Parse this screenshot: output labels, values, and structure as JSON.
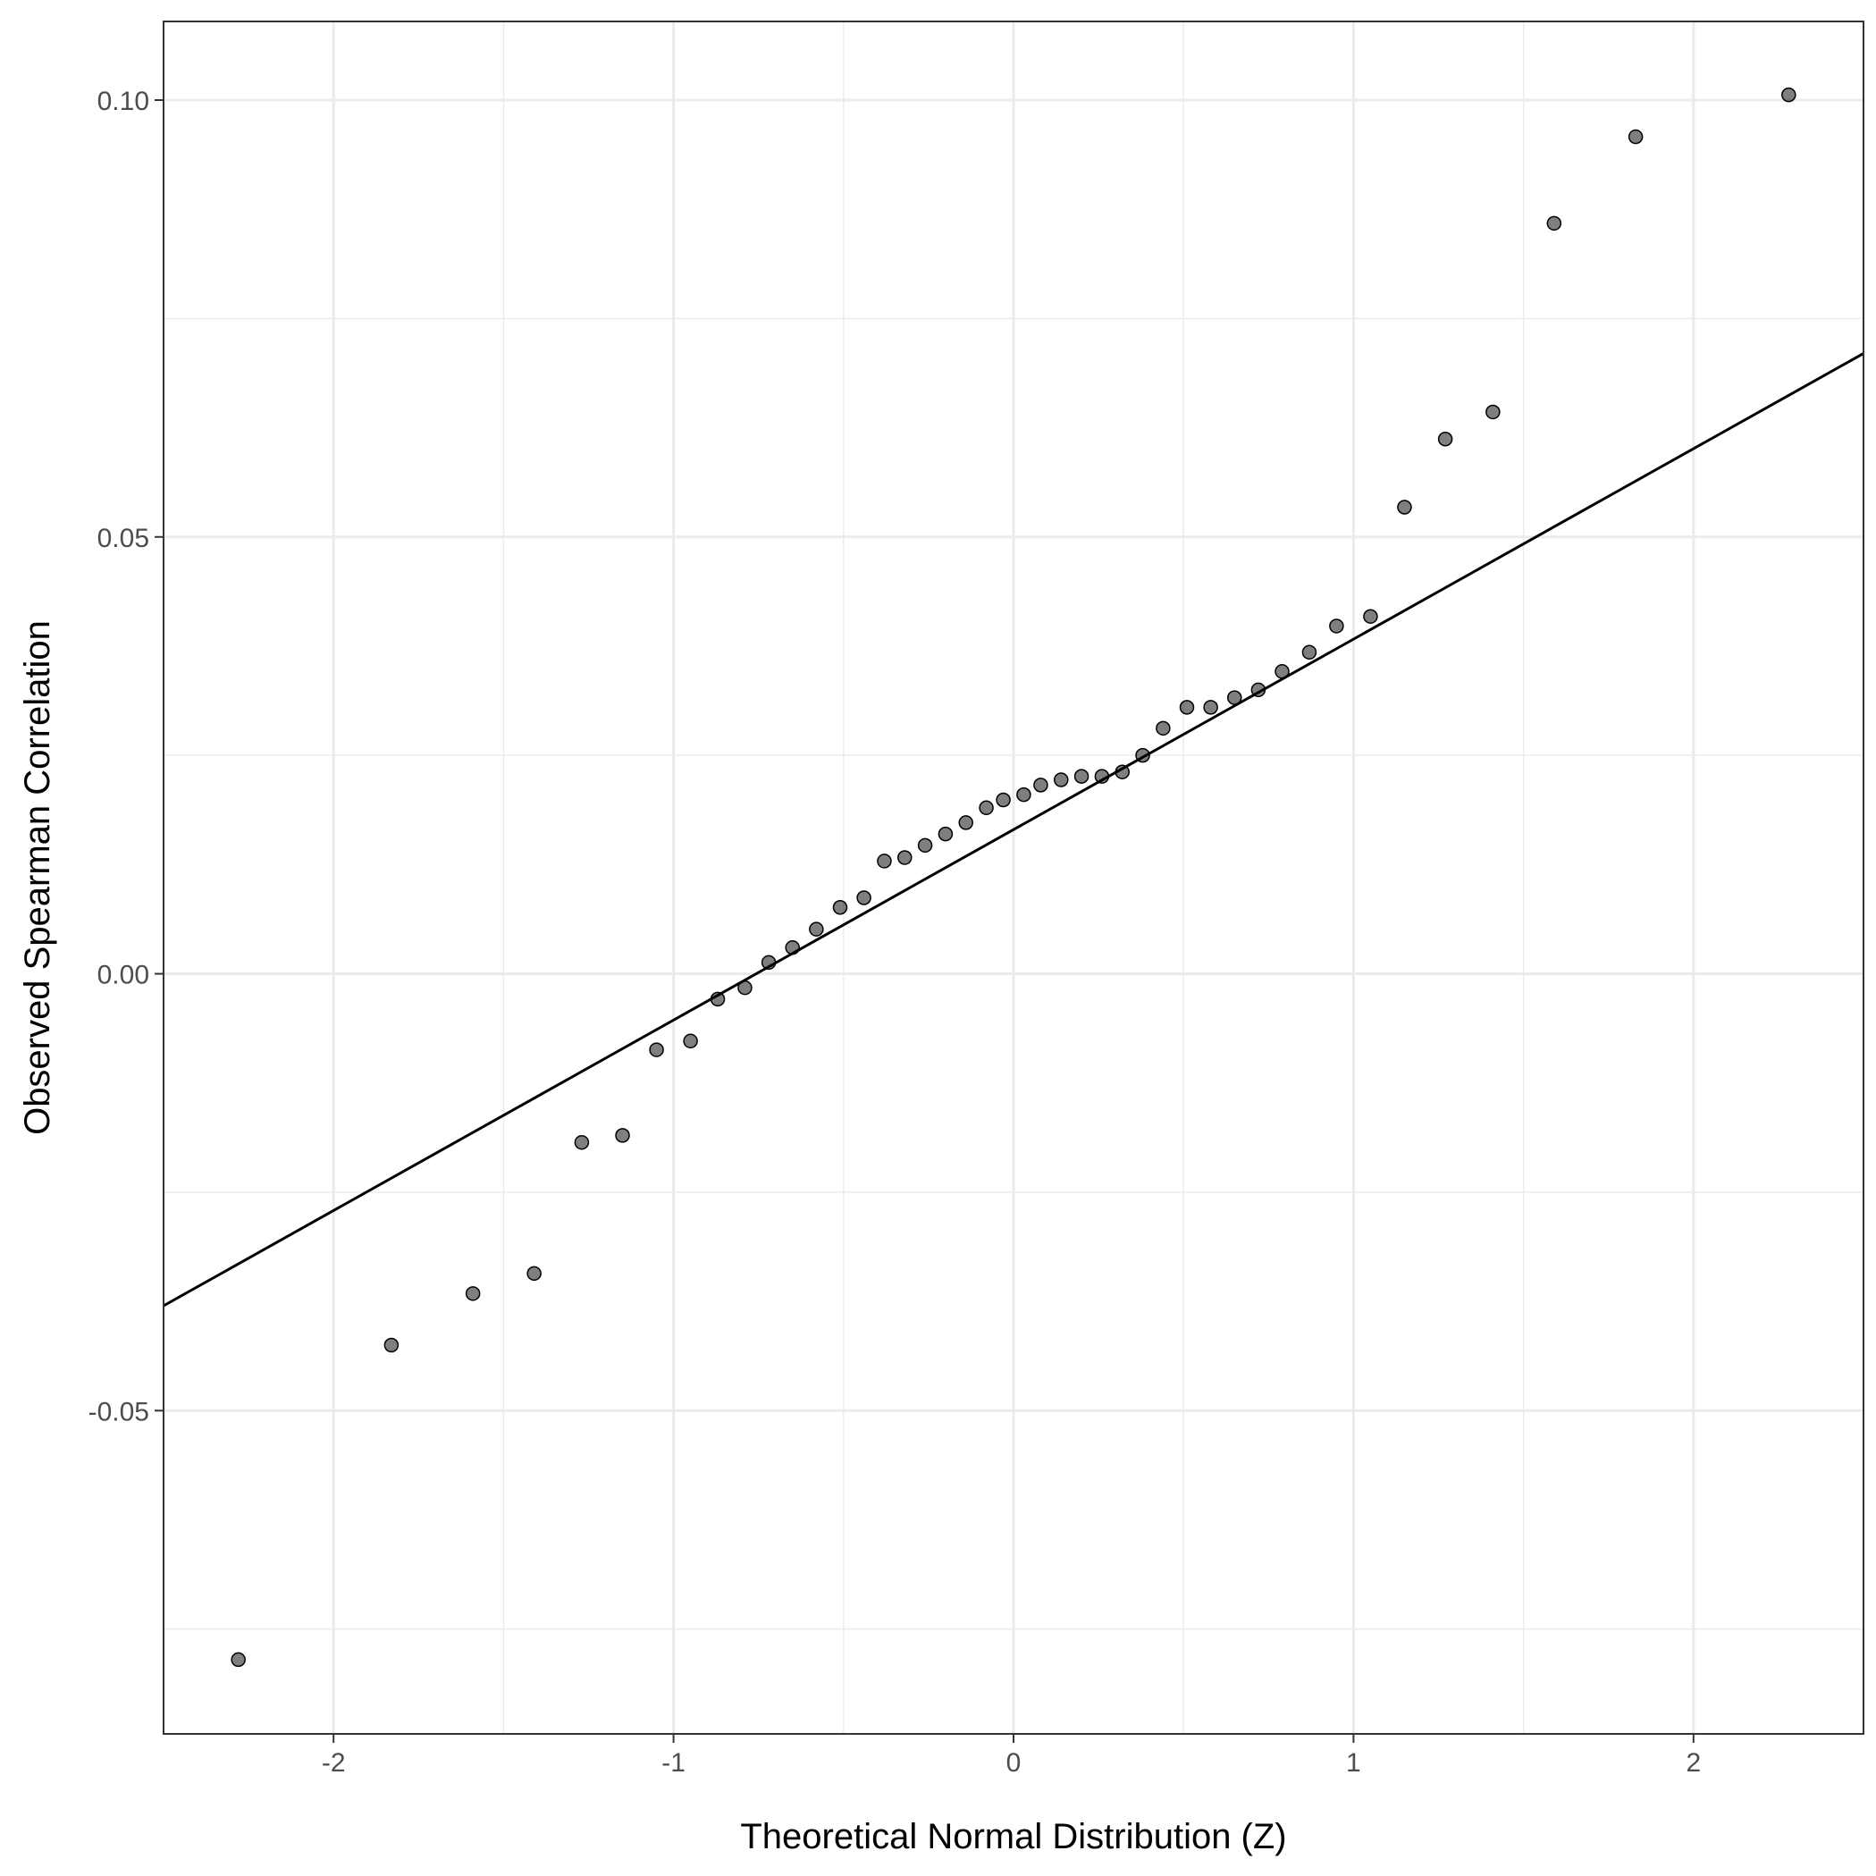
{
  "chart_data": {
    "type": "scatter",
    "xlabel": "Theoretical Normal Distribution (Z)",
    "ylabel": "Observed Spearman Correlation",
    "xlim": [
      -2.5,
      2.5
    ],
    "ylim": [
      -0.087,
      0.109
    ],
    "x_major_ticks": [
      -2,
      -1,
      0,
      1,
      2
    ],
    "x_tick_labels": [
      "-2",
      "-1",
      "0",
      "1",
      "2"
    ],
    "x_minor_ticks": [
      -1.5,
      -0.5,
      0.5,
      1.5
    ],
    "y_major_ticks": [
      -0.05,
      0,
      0.05,
      0.1
    ],
    "y_tick_labels": [
      "-0.05",
      "0.00",
      "0.05",
      "0.10"
    ],
    "y_minor_ticks": [
      -0.075,
      -0.025,
      0.025,
      0.075
    ],
    "grid": true,
    "points": {
      "x": [
        -2.28,
        -1.83,
        -1.59,
        -1.41,
        -1.27,
        -1.15,
        -1.05,
        -0.95,
        -0.87,
        -0.79,
        -0.72,
        -0.65,
        -0.58,
        -0.51,
        -0.44,
        -0.38,
        -0.32,
        -0.26,
        -0.2,
        -0.14,
        -0.08,
        -0.03,
        0.03,
        0.08,
        0.14,
        0.2,
        0.26,
        0.32,
        0.38,
        0.44,
        0.51,
        0.58,
        0.65,
        0.72,
        0.79,
        0.87,
        0.95,
        1.05,
        1.15,
        1.27,
        1.41,
        1.59,
        1.83,
        2.28
      ],
      "y": [
        -0.0785,
        -0.0425,
        -0.0366,
        -0.0343,
        -0.0193,
        -0.0185,
        -0.0087,
        -0.0077,
        -0.0029,
        -0.0016,
        0.0013,
        0.003,
        0.0051,
        0.0076,
        0.0087,
        0.0129,
        0.0133,
        0.0147,
        0.016,
        0.0173,
        0.019,
        0.0199,
        0.0205,
        0.0216,
        0.0222,
        0.0226,
        0.0226,
        0.0231,
        0.025,
        0.0281,
        0.0305,
        0.0305,
        0.0316,
        0.0325,
        0.0346,
        0.0368,
        0.0398,
        0.0409,
        0.0534,
        0.0612,
        0.0643,
        0.0859,
        0.0958,
        0.1006
      ],
      "color": "#000000",
      "fill_opacity": 0.5
    },
    "reference_line": {
      "intercept": 0.0165,
      "slope": 0.0218,
      "color": "#000000"
    }
  }
}
